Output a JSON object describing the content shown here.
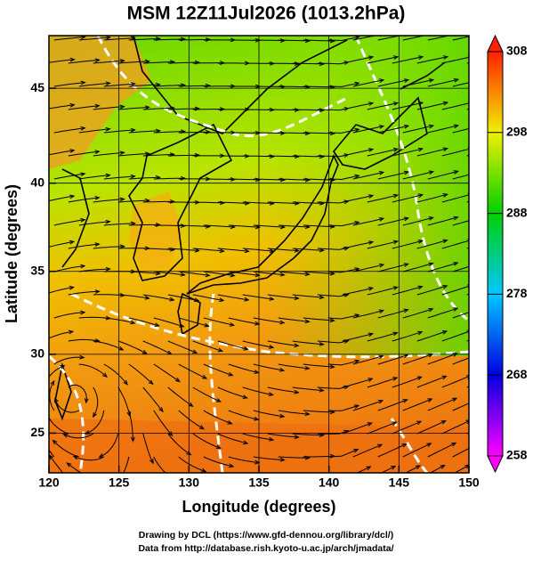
{
  "chart_data": {
    "type": "map",
    "title": "MSM 12Z11Jul2026 (1013.2hPa)",
    "x_label": "Longitude (degrees)",
    "y_label": "Latitude  (degrees)",
    "projection": "mercator",
    "xlim": [
      120,
      150
    ],
    "ylim": [
      22.4,
      47.6
    ],
    "xticks": [
      120,
      125,
      130,
      135,
      140,
      145,
      150
    ],
    "yticks": [
      25,
      30,
      35,
      40,
      45
    ],
    "grid": true,
    "colorbar": {
      "lim": [
        258,
        308
      ],
      "ticks": [
        258,
        268,
        278,
        288,
        298,
        308
      ],
      "colors": [
        "#ff00ff",
        "#0000e0",
        "#00c8ff",
        "#00d000",
        "#f0f000",
        "#ff2000"
      ]
    },
    "credits": [
      "Drawing by DCL (https://www.gfd-dennou.org/library/dcl/)",
      "Data from http://database.rish.kyoto-u.ac.jp/arch/jmadata/"
    ]
  }
}
